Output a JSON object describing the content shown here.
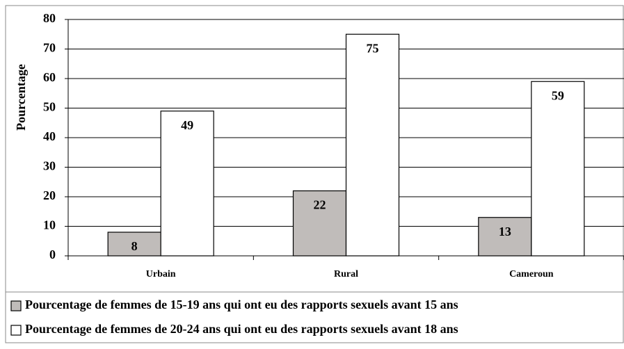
{
  "chart_data": {
    "type": "bar",
    "ylabel": "Pourcentage",
    "categories": [
      "Urbain",
      "Rural",
      "Cameroun"
    ],
    "series": [
      {
        "name": "Pourcentage de femmes de 15-19 ans qui ont eu des rapports sexuels avant 15 ans",
        "color": "#c0bcba",
        "values": [
          8,
          22,
          13
        ]
      },
      {
        "name": "Pourcentage de femmes de 20-24 ans qui ont eu des rapports sexuels avant 18 ans",
        "color": "#ffffff",
        "values": [
          49,
          75,
          59
        ]
      }
    ],
    "ylim": [
      0,
      80
    ],
    "yticks": [
      0,
      10,
      20,
      30,
      40,
      50,
      60,
      70,
      80
    ],
    "grid": true
  }
}
